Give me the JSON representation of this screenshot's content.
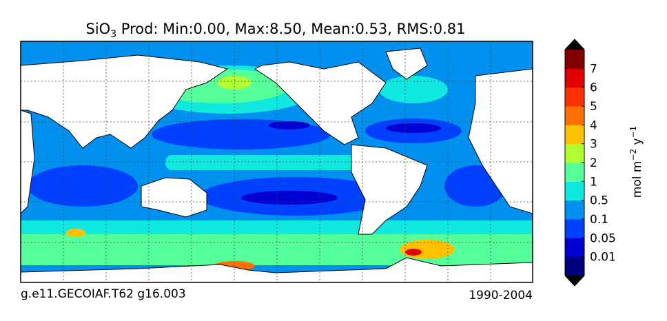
{
  "title": {
    "species": "SiO",
    "subscript": "3",
    "text": " Prod: Min:0.00, Max:8.50, Mean:0.53, RMS:0.81"
  },
  "colorbar": {
    "label": "mol m",
    "exp1": "−2",
    "mid": " y",
    "exp2": "−1",
    "ticks": [
      0.01,
      0.05,
      0.1,
      0.5,
      1,
      2,
      3,
      4,
      5,
      6,
      7
    ],
    "colors": [
      "#00007f",
      "#0000d0",
      "#0040ff",
      "#0090f0",
      "#10e8e0",
      "#55ff99",
      "#b0ff30",
      "#ffc000",
      "#ff7000",
      "#ff3000",
      "#e00000",
      "#800000"
    ],
    "extend_color": "#000000"
  },
  "footer": {
    "left": "g.e11.GECOIAF.T62 g16.003",
    "right": "1990-2004"
  }
}
